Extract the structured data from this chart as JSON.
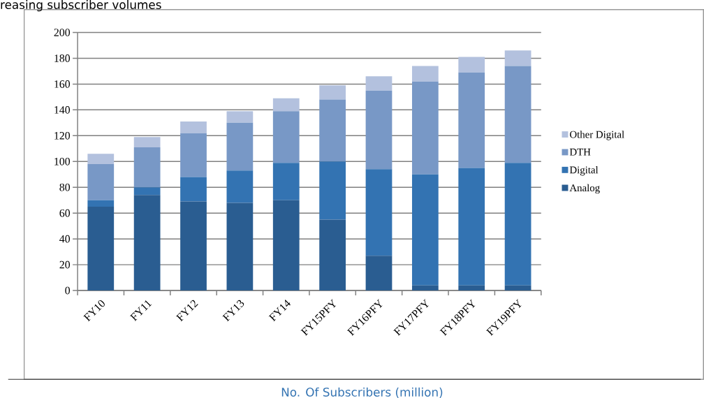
{
  "chart_data": {
    "type": "bar",
    "stacked": true,
    "title": "reasing subscriber volumes",
    "categories": [
      "FY10",
      "FY11",
      "FY12",
      "FY13",
      "FY14",
      "FY15PFY",
      "FY16PFY",
      "FY17PFY",
      "FY18PFY",
      "FY19PFY"
    ],
    "series": [
      {
        "name": "Analog",
        "color": "#2a5d91",
        "values": [
          65,
          74,
          69,
          68,
          70,
          55,
          27,
          4,
          4,
          4
        ]
      },
      {
        "name": "Digital",
        "color": "#3373b2",
        "values": [
          5,
          6,
          19,
          25,
          29,
          45,
          67,
          86,
          91,
          95
        ]
      },
      {
        "name": "DTH",
        "color": "#7898c6",
        "values": [
          28,
          31,
          34,
          37,
          40,
          48,
          61,
          72,
          74,
          75
        ]
      },
      {
        "name": "Other Digital",
        "color": "#b3c1de",
        "values": [
          8,
          8,
          9,
          9,
          10,
          11,
          11,
          12,
          12,
          12
        ]
      }
    ],
    "ylim": [
      0,
      200
    ],
    "yticks": [
      0,
      20,
      40,
      60,
      80,
      100,
      120,
      140,
      160,
      180,
      200
    ],
    "grid": "y",
    "legend": "right",
    "annotations": [
      "No. Of Subscribers (million)"
    ]
  }
}
